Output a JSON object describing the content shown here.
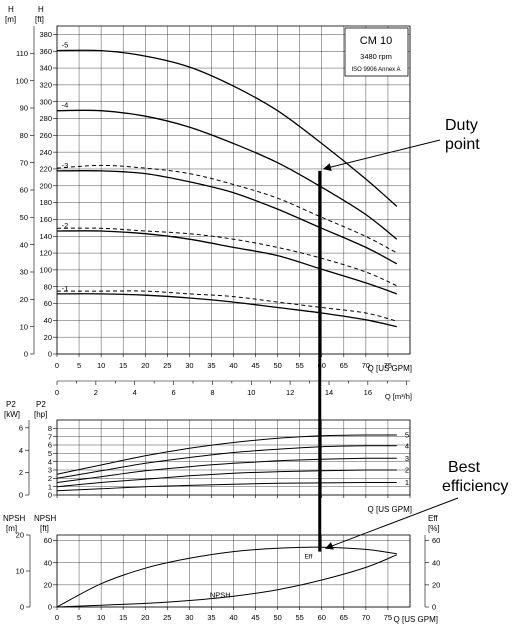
{
  "chart_data": [
    {
      "type": "line",
      "name": "head",
      "left_axis_label": [
        "H",
        "[m]"
      ],
      "right_axis_label": [
        "H",
        "[ft]"
      ],
      "x_label": "Q [US GPM]",
      "xlim": [
        0,
        80
      ],
      "xticks": [
        "0",
        "5",
        "10",
        "15",
        "20",
        "25",
        "30",
        "35",
        "40",
        "45",
        "50",
        "55",
        "60",
        "65",
        "70",
        "75"
      ],
      "ylim_m": [
        0,
        120
      ],
      "yticks_m": [
        "0",
        "10",
        "20",
        "30",
        "40",
        "50",
        "60",
        "70",
        "80",
        "90",
        "100",
        "110"
      ],
      "ylim_ft": [
        0,
        390
      ],
      "yticks_ft": [
        "0",
        "20",
        "40",
        "60",
        "80",
        "100",
        "120",
        "140",
        "160",
        "180",
        "200",
        "220",
        "240",
        "260",
        "280",
        "300",
        "320",
        "340",
        "360",
        "380"
      ],
      "series": [
        {
          "name": "-5",
          "style": "solid",
          "x": [
            0,
            10,
            20,
            30,
            40,
            50,
            60,
            70,
            77
          ],
          "y": [
            111,
            111,
            109,
            105,
            98,
            89,
            77,
            64,
            54
          ]
        },
        {
          "name": "-4",
          "style": "solid",
          "x": [
            0,
            10,
            20,
            30,
            40,
            50,
            60,
            70,
            77
          ],
          "y": [
            89,
            89,
            87,
            83,
            77,
            70,
            61,
            51,
            42
          ]
        },
        {
          "name": "-3",
          "style": "solid",
          "x": [
            0,
            10,
            20,
            30,
            40,
            50,
            60,
            70,
            77
          ],
          "y": [
            67,
            67,
            66,
            63,
            59,
            53,
            46,
            39,
            33
          ]
        },
        {
          "name": "",
          "style": "dash",
          "x": [
            0,
            10,
            20,
            30,
            40,
            50,
            60,
            70,
            77
          ],
          "y": [
            68,
            69,
            68,
            66,
            62,
            57,
            50,
            43,
            37
          ]
        },
        {
          "name": "-2",
          "style": "solid",
          "x": [
            0,
            10,
            20,
            30,
            40,
            50,
            60,
            70,
            77
          ],
          "y": [
            45,
            45,
            44,
            42,
            39,
            36,
            31,
            26,
            22
          ]
        },
        {
          "name": "",
          "style": "dash",
          "x": [
            0,
            10,
            20,
            30,
            40,
            50,
            60,
            70,
            77
          ],
          "y": [
            46,
            46,
            45,
            44,
            42,
            39,
            35,
            30,
            25
          ]
        },
        {
          "name": "-1",
          "style": "solid",
          "x": [
            0,
            10,
            20,
            30,
            40,
            50,
            60,
            70,
            77
          ],
          "y": [
            22,
            22,
            21.5,
            20.5,
            19,
            17,
            15,
            12.5,
            10
          ]
        },
        {
          "name": "",
          "style": "dash",
          "x": [
            0,
            10,
            20,
            30,
            40,
            50,
            60,
            70,
            77
          ],
          "y": [
            23,
            23,
            23,
            22,
            21,
            19,
            17,
            15,
            12
          ]
        }
      ],
      "title_box": [
        "CM 10",
        "3480 rpm",
        "ISO 9906 Annex A"
      ],
      "duty_point": {
        "x": 60,
        "y": 67
      }
    },
    {
      "type": "line",
      "name": "flow-metric-axis",
      "x_label": "Q [m³/h]",
      "xlim": [
        0,
        18.17
      ],
      "xticks": [
        "0",
        "2",
        "4",
        "6",
        "8",
        "10",
        "12",
        "14",
        "16"
      ]
    },
    {
      "type": "line",
      "name": "power",
      "left_axis_label": [
        "P2",
        "[kW]"
      ],
      "right_axis_label": [
        "P2",
        "[hp]"
      ],
      "x_label": "Q [US GPM]",
      "xlim": [
        0,
        80
      ],
      "ylim_kw": [
        0,
        6.7
      ],
      "yticks_kw": [
        "0",
        "2",
        "4",
        "6"
      ],
      "ylim_hp": [
        0,
        9
      ],
      "yticks_hp": [
        "0",
        "1",
        "2",
        "3",
        "4",
        "5",
        "6",
        "7",
        "8"
      ],
      "series": [
        {
          "name": "5",
          "x": [
            0,
            10,
            20,
            30,
            40,
            50,
            60,
            70,
            77
          ],
          "y": [
            2.5,
            3.6,
            4.7,
            5.6,
            6.3,
            6.8,
            7.1,
            7.2,
            7.2
          ]
        },
        {
          "name": "4",
          "x": [
            0,
            10,
            20,
            30,
            40,
            50,
            60,
            70,
            77
          ],
          "y": [
            2.0,
            2.9,
            3.8,
            4.5,
            5.1,
            5.5,
            5.8,
            5.9,
            5.9
          ]
        },
        {
          "name": "3",
          "x": [
            0,
            10,
            20,
            30,
            40,
            50,
            60,
            70,
            77
          ],
          "y": [
            1.5,
            2.2,
            2.9,
            3.4,
            3.8,
            4.1,
            4.3,
            4.4,
            4.4
          ]
        },
        {
          "name": "2",
          "x": [
            0,
            10,
            20,
            30,
            40,
            50,
            60,
            70,
            77
          ],
          "y": [
            1.0,
            1.5,
            1.9,
            2.3,
            2.6,
            2.8,
            2.9,
            3.0,
            3.0
          ]
        },
        {
          "name": "1",
          "x": [
            0,
            10,
            20,
            30,
            40,
            50,
            60,
            70,
            77
          ],
          "y": [
            0.5,
            0.75,
            1.0,
            1.15,
            1.3,
            1.4,
            1.45,
            1.5,
            1.5
          ]
        }
      ]
    },
    {
      "type": "line",
      "name": "npsh-efficiency",
      "left_axis_label": [
        "NPSH",
        "[m]"
      ],
      "right_axis_label_npsh": [
        "NPSH",
        "[ft]"
      ],
      "far_right_axis_label": [
        "Eff",
        "[%]"
      ],
      "x_label": "Q [US GPM]",
      "xlim": [
        0,
        80
      ],
      "xticks": [
        "0",
        "5",
        "10",
        "15",
        "20",
        "25",
        "30",
        "35",
        "40",
        "45",
        "50",
        "55",
        "60",
        "65",
        "70",
        "75"
      ],
      "ylim_m": [
        0,
        20
      ],
      "yticks_m": [
        "0",
        "10",
        "20"
      ],
      "ylim_ft": [
        0,
        65
      ],
      "yticks_ft": [
        "0",
        "20",
        "40",
        "60"
      ],
      "ylim_eff": [
        0,
        65
      ],
      "yticks_eff": [
        "0",
        "20",
        "40",
        "60"
      ],
      "series": [
        {
          "name": "Eff",
          "x": [
            0,
            10,
            20,
            30,
            40,
            50,
            60,
            70,
            77
          ],
          "y": [
            0,
            21,
            35,
            44,
            50,
            53,
            54,
            52,
            48
          ]
        },
        {
          "name": "NPSH",
          "x": [
            0,
            10,
            20,
            30,
            40,
            50,
            60,
            70,
            77
          ],
          "y": [
            0,
            0.5,
            1,
            1.8,
            3,
            4.8,
            7.5,
            11,
            14.5
          ]
        }
      ],
      "curve_labels": [
        "Eff",
        "NPSH"
      ]
    }
  ],
  "annotations": {
    "duty_point": "Duty\npoint",
    "best_efficiency": "Best\nefficiency"
  }
}
